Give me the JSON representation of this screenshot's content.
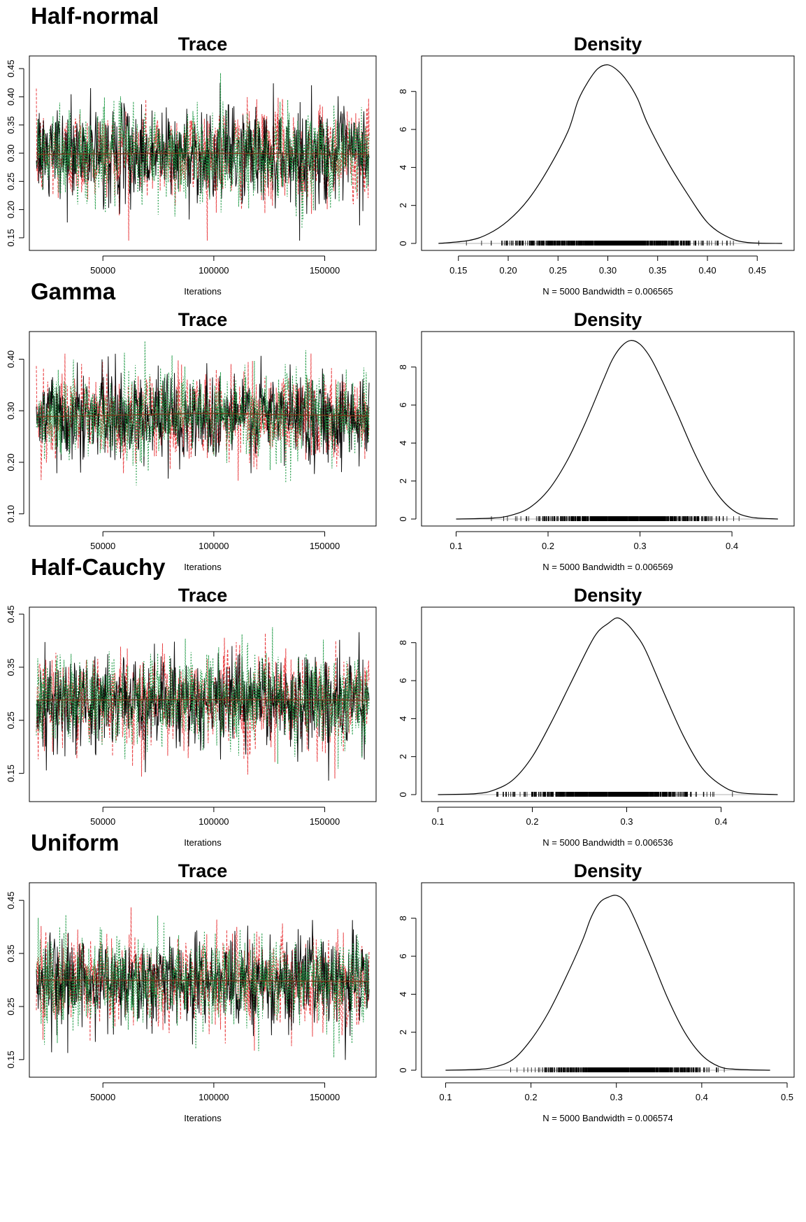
{
  "colors": {
    "chain1": "#000000",
    "chain2": "#e8373a",
    "chain3": "#1f9a44",
    "density": "#000000",
    "baseline": "#b0b0b0"
  },
  "sections": [
    {
      "heading": "Half-normal",
      "chart_data": [
        {
          "type": "line",
          "title": "Trace",
          "xlabel": "Iterations",
          "xlim": [
            20000,
            170000
          ],
          "ylim": [
            0.14,
            0.46
          ],
          "xticks": [
            "50000",
            "100000",
            "150000"
          ],
          "xtick_values": [
            50000,
            100000,
            150000
          ],
          "yticks": [
            "0.15",
            "0.20",
            "0.25",
            "0.30",
            "0.35",
            "0.40",
            "0.45"
          ],
          "ytick_values": [
            0.15,
            0.2,
            0.25,
            0.3,
            0.35,
            0.4,
            0.45
          ],
          "series": [
            {
              "mean": 0.298,
              "sd": 0.042
            },
            {
              "mean": 0.298,
              "sd": 0.042
            },
            {
              "mean": 0.298,
              "sd": 0.042
            }
          ],
          "trend": [
            0.298,
            0.3,
            0.298
          ]
        },
        {
          "type": "line",
          "title": "Density",
          "xlabel": "N = 5000   Bandwidth = 0.006565",
          "xlim": [
            0.12,
            0.48
          ],
          "ylim": [
            0,
            9.5
          ],
          "xticks": [
            "0.15",
            "0.20",
            "0.25",
            "0.30",
            "0.35",
            "0.40",
            "0.45"
          ],
          "xtick_values": [
            0.15,
            0.2,
            0.25,
            0.3,
            0.35,
            0.4,
            0.45
          ],
          "yticks": [
            "0",
            "2",
            "4",
            "6",
            "8"
          ],
          "ytick_values": [
            0,
            2,
            4,
            6,
            8
          ],
          "x": [
            0.13,
            0.16,
            0.18,
            0.2,
            0.22,
            0.24,
            0.26,
            0.27,
            0.28,
            0.29,
            0.3,
            0.31,
            0.32,
            0.33,
            0.34,
            0.36,
            0.38,
            0.4,
            0.42,
            0.44,
            0.475
          ],
          "y": [
            0,
            0.15,
            0.5,
            1.2,
            2.3,
            3.9,
            5.9,
            7.5,
            8.5,
            9.2,
            9.4,
            9.1,
            8.5,
            7.6,
            6.3,
            4.3,
            2.6,
            1.1,
            0.35,
            0.05,
            0
          ],
          "rug_range": [
            0.145,
            0.465
          ]
        }
      ]
    },
    {
      "heading": "Gamma",
      "chart_data": [
        {
          "type": "line",
          "title": "Trace",
          "xlabel": "Iterations",
          "xlim": [
            20000,
            170000
          ],
          "ylim": [
            0.09,
            0.44
          ],
          "xticks": [
            "50000",
            "100000",
            "150000"
          ],
          "xtick_values": [
            50000,
            100000,
            150000
          ],
          "yticks": [
            "0.10",
            "0.20",
            "0.30",
            "0.40"
          ],
          "ytick_values": [
            0.1,
            0.2,
            0.3,
            0.4
          ],
          "series": [
            {
              "mean": 0.29,
              "sd": 0.042
            },
            {
              "mean": 0.29,
              "sd": 0.042
            },
            {
              "mean": 0.29,
              "sd": 0.042
            }
          ],
          "trend": [
            0.288,
            0.295,
            0.29
          ]
        },
        {
          "type": "line",
          "title": "Density",
          "xlabel": "N = 5000   Bandwidth = 0.006569",
          "xlim": [
            0.07,
            0.46
          ],
          "ylim": [
            0,
            9.5
          ],
          "xticks": [
            "0.1",
            "0.2",
            "0.3",
            "0.4"
          ],
          "xtick_values": [
            0.1,
            0.2,
            0.3,
            0.4
          ],
          "yticks": [
            "0",
            "2",
            "4",
            "6",
            "8"
          ],
          "ytick_values": [
            0,
            2,
            4,
            6,
            8
          ],
          "x": [
            0.1,
            0.14,
            0.16,
            0.18,
            0.2,
            0.22,
            0.24,
            0.26,
            0.27,
            0.28,
            0.29,
            0.3,
            0.31,
            0.32,
            0.34,
            0.36,
            0.38,
            0.4,
            0.42,
            0.45
          ],
          "y": [
            0,
            0.05,
            0.2,
            0.6,
            1.5,
            3.0,
            5.0,
            7.3,
            8.4,
            9.1,
            9.4,
            9.2,
            8.6,
            7.7,
            5.6,
            3.4,
            1.6,
            0.5,
            0.1,
            0
          ],
          "rug_range": [
            0.135,
            0.43
          ]
        }
      ]
    },
    {
      "heading": "Half-Cauchy",
      "chart_data": [
        {
          "type": "line",
          "title": "Trace",
          "xlabel": "Iterations",
          "xlim": [
            20000,
            170000
          ],
          "ylim": [
            0.11,
            0.45
          ],
          "xticks": [
            "50000",
            "100000",
            "150000"
          ],
          "xtick_values": [
            50000,
            100000,
            150000
          ],
          "yticks": [
            "0.15",
            "0.25",
            "0.35",
            "0.45"
          ],
          "ytick_values": [
            0.15,
            0.25,
            0.35,
            0.45
          ],
          "series": [
            {
              "mean": 0.288,
              "sd": 0.042
            },
            {
              "mean": 0.288,
              "sd": 0.042
            },
            {
              "mean": 0.288,
              "sd": 0.042
            }
          ],
          "trend": [
            0.288,
            0.289,
            0.288
          ]
        },
        {
          "type": "line",
          "title": "Density",
          "xlabel": "N = 5000   Bandwidth = 0.006536",
          "xlim": [
            0.09,
            0.47
          ],
          "ylim": [
            0,
            9.5
          ],
          "xticks": [
            "0.1",
            "0.2",
            "0.3",
            "0.4"
          ],
          "xtick_values": [
            0.1,
            0.2,
            0.3,
            0.4
          ],
          "yticks": [
            "0",
            "2",
            "4",
            "6",
            "8"
          ],
          "ytick_values": [
            0,
            2,
            4,
            6,
            8
          ],
          "x": [
            0.1,
            0.14,
            0.16,
            0.18,
            0.2,
            0.22,
            0.24,
            0.26,
            0.27,
            0.28,
            0.29,
            0.3,
            0.31,
            0.32,
            0.34,
            0.36,
            0.38,
            0.4,
            0.42,
            0.46
          ],
          "y": [
            0,
            0.05,
            0.25,
            0.8,
            2.0,
            3.8,
            5.8,
            7.8,
            8.6,
            9.0,
            9.3,
            9.0,
            8.4,
            7.6,
            5.3,
            3.1,
            1.4,
            0.5,
            0.1,
            0
          ],
          "rug_range": [
            0.14,
            0.43
          ]
        }
      ]
    },
    {
      "heading": "Uniform",
      "chart_data": [
        {
          "type": "line",
          "title": "Trace",
          "xlabel": "Iterations",
          "xlim": [
            20000,
            170000
          ],
          "ylim": [
            0.13,
            0.47
          ],
          "xticks": [
            "50000",
            "100000",
            "150000"
          ],
          "xtick_values": [
            50000,
            100000,
            150000
          ],
          "yticks": [
            "0.15",
            "0.25",
            "0.35",
            "0.45"
          ],
          "ytick_values": [
            0.15,
            0.25,
            0.35,
            0.45
          ],
          "series": [
            {
              "mean": 0.298,
              "sd": 0.042
            },
            {
              "mean": 0.298,
              "sd": 0.042
            },
            {
              "mean": 0.298,
              "sd": 0.042
            }
          ],
          "trend": [
            0.3,
            0.299,
            0.297
          ]
        },
        {
          "type": "line",
          "title": "Density",
          "xlabel": "N = 5000   Bandwidth = 0.006574",
          "xlim": [
            0.08,
            0.5
          ],
          "ylim": [
            0,
            9.5
          ],
          "xticks": [
            "0.1",
            "0.2",
            "0.3",
            "0.4",
            "0.5"
          ],
          "xtick_values": [
            0.1,
            0.2,
            0.3,
            0.4,
            0.5
          ],
          "yticks": [
            "0",
            "2",
            "4",
            "6",
            "8"
          ],
          "ytick_values": [
            0,
            2,
            4,
            6,
            8
          ],
          "x": [
            0.1,
            0.14,
            0.16,
            0.18,
            0.2,
            0.22,
            0.24,
            0.26,
            0.27,
            0.28,
            0.29,
            0.3,
            0.31,
            0.32,
            0.34,
            0.36,
            0.38,
            0.4,
            0.42,
            0.44,
            0.48
          ],
          "y": [
            0,
            0.05,
            0.2,
            0.6,
            1.6,
            3.0,
            4.8,
            6.8,
            8.0,
            8.8,
            9.1,
            9.2,
            8.9,
            8.1,
            6.0,
            3.8,
            2.0,
            0.8,
            0.2,
            0.05,
            0
          ],
          "rug_range": [
            0.15,
            0.47
          ]
        }
      ]
    }
  ]
}
